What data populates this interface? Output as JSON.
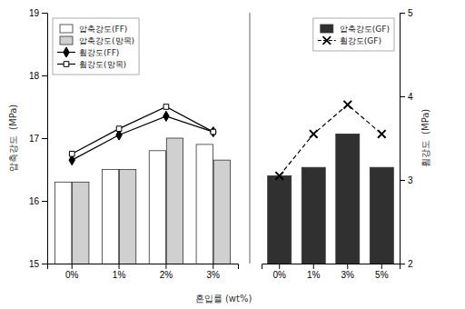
{
  "chart_data": [
    {
      "type": "bar",
      "xlabel": "혼입률 (wt%)",
      "ylabel": "압축강도  (MPa)",
      "categories": [
        "0%",
        "1%",
        "2%",
        "3%"
      ],
      "series": [
        {
          "name": "압축강도(FF)",
          "type": "bar",
          "color": "#ffffff",
          "values": [
            16.3,
            16.5,
            16.8,
            16.9
          ]
        },
        {
          "name": "압축강도(망목)",
          "type": "bar",
          "color": "#d0d0d0",
          "values": [
            16.3,
            16.5,
            17.0,
            16.65
          ]
        },
        {
          "name": "휨강도(FF)",
          "type": "line",
          "color": "#000000",
          "marker": "diamond",
          "line_style": "solid",
          "values": [
            16.65,
            17.05,
            17.35,
            17.1
          ]
        },
        {
          "name": "휨강도(망목)",
          "type": "line",
          "color": "#000000",
          "marker": "square",
          "line_style": "solid",
          "values": [
            16.75,
            17.15,
            17.5,
            17.1
          ]
        }
      ],
      "ylim": [
        15,
        19
      ],
      "yticks": [
        15,
        16,
        17,
        18,
        19
      ],
      "legend": "upper left",
      "grid": false
    },
    {
      "type": "bar",
      "ylabel": "휨강도  (MPa)",
      "categories": [
        "0%",
        "1%",
        "3%",
        "5%"
      ],
      "series": [
        {
          "name": "압축강도(GF)",
          "type": "bar",
          "color": "#303030",
          "values": [
            3.05,
            3.15,
            3.55,
            3.15
          ]
        },
        {
          "name": "휨강도(GF)",
          "type": "line",
          "color": "#000000",
          "marker": "x",
          "line_style": "dashed",
          "values": [
            3.05,
            3.55,
            3.9,
            3.55
          ]
        }
      ],
      "ylim": [
        2,
        5
      ],
      "yticks": [
        2,
        3,
        4,
        5
      ],
      "legend": "upper right",
      "grid": false
    }
  ]
}
